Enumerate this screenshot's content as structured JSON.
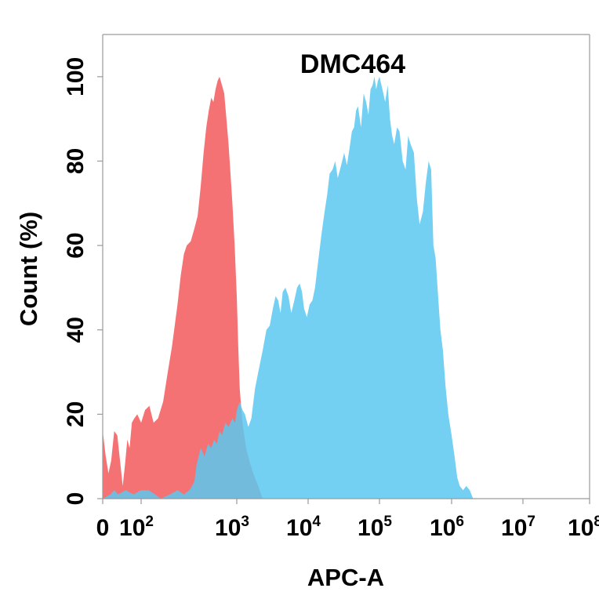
{
  "chart_data": {
    "type": "area",
    "title": "DMC464",
    "xlabel": "APC-A",
    "ylabel": "Count  (%)",
    "x_scale": "biexponential",
    "xlim": [
      0,
      100000000
    ],
    "ylim": [
      0,
      110
    ],
    "grid": false,
    "legend": "none",
    "x_ticks": [
      {
        "value": 0,
        "base": "0",
        "exp": ""
      },
      {
        "value": 100,
        "base": "10",
        "exp": "2"
      },
      {
        "value": 1000,
        "base": "10",
        "exp": "3"
      },
      {
        "value": 10000,
        "base": "10",
        "exp": "4"
      },
      {
        "value": 100000,
        "base": "10",
        "exp": "5"
      },
      {
        "value": 1000000,
        "base": "10",
        "exp": "6"
      },
      {
        "value": 10000000,
        "base": "10",
        "exp": "7"
      },
      {
        "value": 100000000,
        "base": "10",
        "exp": "8"
      }
    ],
    "y_ticks": [
      {
        "value": 0,
        "label": "0"
      },
      {
        "value": 20,
        "label": "20"
      },
      {
        "value": 40,
        "label": "40"
      },
      {
        "value": 60,
        "label": "60"
      },
      {
        "value": 80,
        "label": "80"
      },
      {
        "value": 100,
        "label": "100"
      }
    ],
    "series": [
      {
        "color": "#f2595c",
        "opacity": 0.85,
        "points": [
          [
            0,
            16
          ],
          [
            8,
            10
          ],
          [
            15,
            6
          ],
          [
            22,
            9
          ],
          [
            30,
            16
          ],
          [
            38,
            15
          ],
          [
            45,
            9
          ],
          [
            52,
            3
          ],
          [
            58,
            8
          ],
          [
            64,
            14
          ],
          [
            70,
            12
          ],
          [
            76,
            18
          ],
          [
            82,
            19
          ],
          [
            90,
            20
          ],
          [
            100,
            18
          ],
          [
            110,
            21
          ],
          [
            122,
            22
          ],
          [
            135,
            18
          ],
          [
            150,
            19
          ],
          [
            170,
            23
          ],
          [
            190,
            30
          ],
          [
            210,
            36
          ],
          [
            240,
            46
          ],
          [
            260,
            53
          ],
          [
            280,
            58
          ],
          [
            300,
            60
          ],
          [
            330,
            61
          ],
          [
            360,
            64
          ],
          [
            390,
            67
          ],
          [
            420,
            74
          ],
          [
            450,
            82
          ],
          [
            480,
            88
          ],
          [
            510,
            92
          ],
          [
            540,
            95
          ],
          [
            570,
            94
          ],
          [
            600,
            97
          ],
          [
            630,
            99
          ],
          [
            660,
            100
          ],
          [
            700,
            98
          ],
          [
            740,
            96
          ],
          [
            780,
            90
          ],
          [
            820,
            84
          ],
          [
            860,
            77
          ],
          [
            900,
            70
          ],
          [
            950,
            60
          ],
          [
            1000,
            48
          ],
          [
            1050,
            36
          ],
          [
            1100,
            26
          ],
          [
            1200,
            18
          ],
          [
            1350,
            12
          ],
          [
            1500,
            9
          ],
          [
            1700,
            6
          ],
          [
            2000,
            3
          ],
          [
            2300,
            0
          ]
        ]
      },
      {
        "color": "#5bc8f0",
        "opacity": 0.85,
        "points": [
          [
            0,
            0
          ],
          [
            20,
            1
          ],
          [
            30,
            2
          ],
          [
            40,
            1
          ],
          [
            60,
            2
          ],
          [
            80,
            1
          ],
          [
            100,
            2
          ],
          [
            120,
            2
          ],
          [
            140,
            1
          ],
          [
            160,
            0
          ],
          [
            200,
            1
          ],
          [
            240,
            2
          ],
          [
            280,
            1
          ],
          [
            320,
            2
          ],
          [
            360,
            4
          ],
          [
            380,
            8
          ],
          [
            420,
            12
          ],
          [
            460,
            10
          ],
          [
            500,
            13
          ],
          [
            540,
            12
          ],
          [
            580,
            14
          ],
          [
            620,
            13
          ],
          [
            660,
            16
          ],
          [
            700,
            15
          ],
          [
            760,
            18
          ],
          [
            820,
            17
          ],
          [
            900,
            19
          ],
          [
            960,
            18
          ],
          [
            1000,
            21
          ],
          [
            1050,
            22
          ],
          [
            1100,
            23
          ],
          [
            1200,
            21
          ],
          [
            1300,
            20
          ],
          [
            1450,
            17
          ],
          [
            1600,
            19
          ],
          [
            1800,
            26
          ],
          [
            2000,
            30
          ],
          [
            2300,
            35
          ],
          [
            2600,
            40
          ],
          [
            2900,
            41
          ],
          [
            3200,
            45
          ],
          [
            3500,
            48
          ],
          [
            3800,
            47
          ],
          [
            4100,
            44
          ],
          [
            4400,
            49
          ],
          [
            4800,
            50
          ],
          [
            5300,
            48
          ],
          [
            5800,
            44
          ],
          [
            6400,
            47
          ],
          [
            7000,
            50
          ],
          [
            7600,
            51
          ],
          [
            8200,
            49
          ],
          [
            8800,
            45
          ],
          [
            9600,
            43
          ],
          [
            10500,
            46
          ],
          [
            11500,
            47
          ],
          [
            12500,
            50
          ],
          [
            14000,
            57
          ],
          [
            15500,
            63
          ],
          [
            17000,
            68
          ],
          [
            18500,
            72
          ],
          [
            20000,
            77
          ],
          [
            22000,
            78
          ],
          [
            24000,
            80
          ],
          [
            26000,
            76
          ],
          [
            28000,
            78
          ],
          [
            30000,
            80
          ],
          [
            32000,
            82
          ],
          [
            35000,
            79
          ],
          [
            38000,
            83
          ],
          [
            41000,
            87
          ],
          [
            44000,
            88
          ],
          [
            47000,
            92
          ],
          [
            50000,
            93
          ],
          [
            55000,
            88
          ],
          [
            60000,
            96
          ],
          [
            65000,
            94
          ],
          [
            70000,
            91
          ],
          [
            75000,
            97
          ],
          [
            80000,
            98
          ],
          [
            85000,
            100
          ],
          [
            90000,
            97
          ],
          [
            95000,
            99
          ],
          [
            100000,
            100
          ],
          [
            110000,
            97
          ],
          [
            120000,
            94
          ],
          [
            130000,
            98
          ],
          [
            140000,
            90
          ],
          [
            150000,
            86
          ],
          [
            160000,
            84
          ],
          [
            175000,
            88
          ],
          [
            190000,
            87
          ],
          [
            210000,
            80
          ],
          [
            230000,
            78
          ],
          [
            250000,
            86
          ],
          [
            270000,
            84
          ],
          [
            300000,
            82
          ],
          [
            330000,
            71
          ],
          [
            360000,
            65
          ],
          [
            400000,
            68
          ],
          [
            440000,
            75
          ],
          [
            480000,
            80
          ],
          [
            520000,
            78
          ],
          [
            560000,
            60
          ],
          [
            600000,
            57
          ],
          [
            650000,
            48
          ],
          [
            700000,
            40
          ],
          [
            760000,
            35
          ],
          [
            820000,
            27
          ],
          [
            900000,
            20
          ],
          [
            1000000,
            15
          ],
          [
            1100000,
            10
          ],
          [
            1200000,
            5
          ],
          [
            1300000,
            3
          ],
          [
            1450000,
            2
          ],
          [
            1600000,
            3
          ],
          [
            1800000,
            2
          ],
          [
            2000000,
            0
          ]
        ]
      }
    ]
  }
}
